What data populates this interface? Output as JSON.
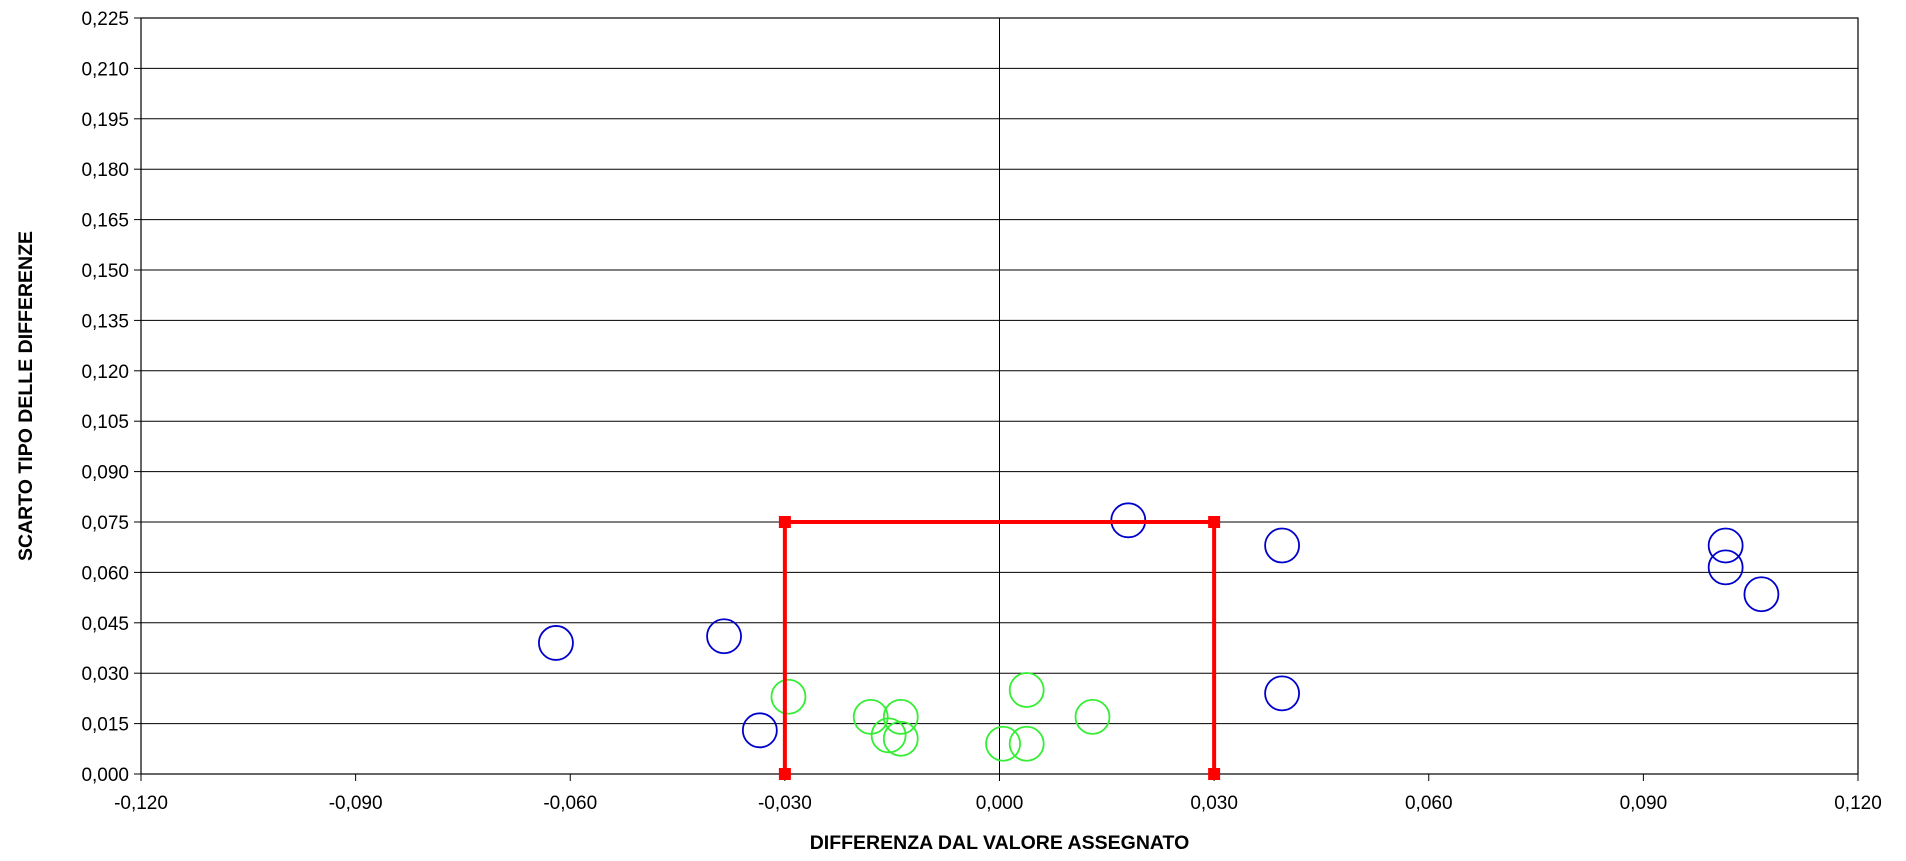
{
  "chart_data": {
    "type": "scatter",
    "title": "",
    "xlabel": "DIFFERENZA DAL VALORE ASSEGNATO",
    "ylabel": "SCARTO TIPO DELLE DIFFERENZE",
    "xlim": [
      -0.12,
      0.12
    ],
    "ylim": [
      0,
      0.225
    ],
    "x_ticks": [
      "-0,120",
      "-0,090",
      "-0,060",
      "-0,030",
      "0,000",
      "0,030",
      "0,060",
      "0,090",
      "0,120"
    ],
    "y_ticks": [
      "0,000",
      "0,015",
      "0,030",
      "0,045",
      "0,060",
      "0,075",
      "0,090",
      "0,105",
      "0,120",
      "0,135",
      "0,150",
      "0,165",
      "0,180",
      "0,195",
      "0,210",
      "0,225"
    ],
    "grid": "horizontal",
    "legend": "none",
    "series": [
      {
        "color": "#0000cc",
        "marker": "open-circle",
        "points": [
          {
            "x": -0.062,
            "y": 0.039
          },
          {
            "x": -0.0385,
            "y": 0.041
          },
          {
            "x": -0.0335,
            "y": 0.013
          },
          {
            "x": 0.018,
            "y": 0.0755
          },
          {
            "x": 0.0395,
            "y": 0.068
          },
          {
            "x": 0.0395,
            "y": 0.024
          },
          {
            "x": 0.1015,
            "y": 0.068
          },
          {
            "x": 0.1015,
            "y": 0.0615
          },
          {
            "x": 0.1065,
            "y": 0.0535
          }
        ]
      },
      {
        "color": "#33ee33",
        "marker": "open-circle",
        "points": [
          {
            "x": -0.0295,
            "y": 0.023
          },
          {
            "x": -0.018,
            "y": 0.017
          },
          {
            "x": -0.0155,
            "y": 0.0115
          },
          {
            "x": -0.0138,
            "y": 0.017
          },
          {
            "x": -0.0138,
            "y": 0.0105
          },
          {
            "x": 0.0005,
            "y": 0.009
          },
          {
            "x": 0.0038,
            "y": 0.025
          },
          {
            "x": 0.0038,
            "y": 0.009
          },
          {
            "x": 0.013,
            "y": 0.017
          }
        ]
      },
      {
        "color": "#ff0000",
        "marker": "square",
        "line": true,
        "points": [
          {
            "x": -0.03,
            "y": 0
          },
          {
            "x": -0.03,
            "y": 0.075
          },
          {
            "x": 0.03,
            "y": 0.075
          },
          {
            "x": 0.03,
            "y": 0
          }
        ]
      }
    ]
  }
}
